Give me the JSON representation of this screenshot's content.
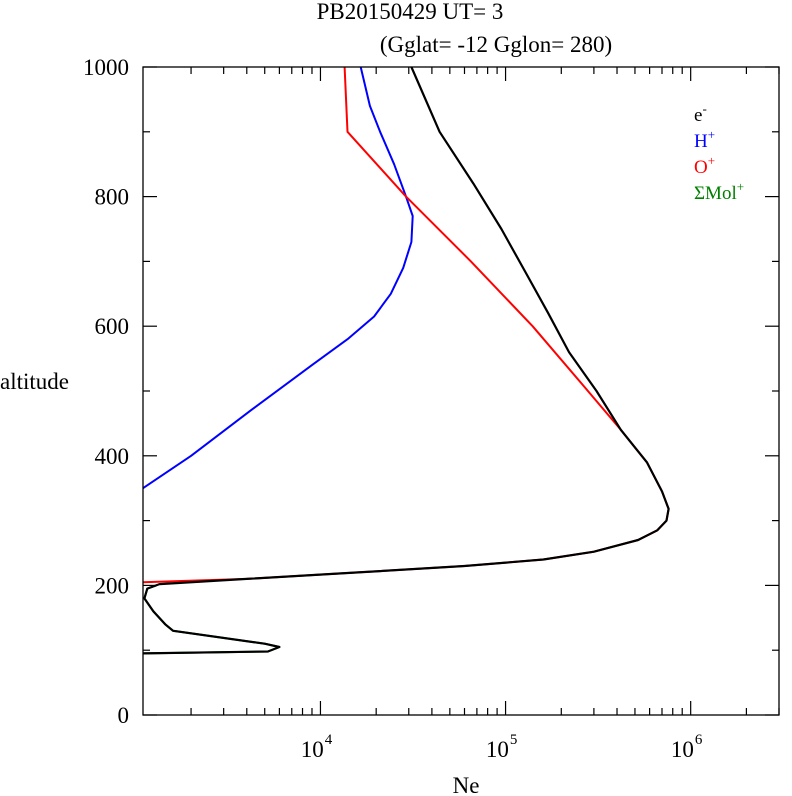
{
  "chart_data": {
    "type": "line",
    "title_line1": "PB20150429   UT=  3",
    "title_line2": "(Gglat= -12   Gglon=  280)",
    "xlabel": "Ne",
    "ylabel": "altitude",
    "xscale": "log",
    "xlim": [
      1100,
      3000000
    ],
    "ylim": [
      0,
      1000
    ],
    "x_tick_labels": [
      {
        "value": 10000,
        "base": "10",
        "exp": "4"
      },
      {
        "value": 100000,
        "base": "10",
        "exp": "5"
      },
      {
        "value": 1000000,
        "base": "10",
        "exp": "6"
      }
    ],
    "y_ticks": [
      0,
      200,
      400,
      600,
      800,
      1000
    ],
    "y_tick_labels": [
      "0",
      "200",
      "400",
      "600",
      "800",
      "1000"
    ],
    "legend": {
      "placement": "top-right",
      "items": [
        {
          "base": "e",
          "sup": "-",
          "color": "#000000"
        },
        {
          "base": "H",
          "sup": "+",
          "color": "#0000ff"
        },
        {
          "base": "O",
          "sup": "+",
          "color": "#ff0000"
        },
        {
          "base": "ΣMol",
          "sup": "+",
          "color": "#008000"
        }
      ]
    },
    "series": [
      {
        "color": "#008000",
        "points": [
          [
            1100,
            95
          ],
          [
            5200,
            98
          ],
          [
            6000,
            105
          ],
          [
            5000,
            110
          ],
          [
            1600,
            130
          ],
          [
            1450,
            140
          ],
          [
            1250,
            160
          ],
          [
            1120,
            180
          ],
          [
            1160,
            195
          ],
          [
            1300,
            200
          ]
        ]
      },
      {
        "color": "#0000ff",
        "points": [
          [
            1100,
            350
          ],
          [
            2000,
            400
          ],
          [
            4200,
            470
          ],
          [
            9000,
            540
          ],
          [
            14000,
            580
          ],
          [
            19500,
            615
          ],
          [
            24000,
            650
          ],
          [
            28000,
            690
          ],
          [
            31000,
            730
          ],
          [
            31500,
            770
          ],
          [
            29000,
            800
          ],
          [
            25000,
            850
          ],
          [
            21000,
            900
          ],
          [
            18500,
            940
          ],
          [
            16500,
            1000
          ]
        ]
      },
      {
        "color": "#ff0000",
        "points": [
          [
            1100,
            205
          ],
          [
            4000,
            210
          ],
          [
            16000,
            220
          ],
          [
            60000,
            230
          ],
          [
            160000,
            240
          ],
          [
            300000,
            252
          ],
          [
            520000,
            270
          ],
          [
            660000,
            285
          ],
          [
            740000,
            300
          ],
          [
            760000,
            318
          ],
          [
            700000,
            345
          ],
          [
            580000,
            390
          ],
          [
            420000,
            440
          ],
          [
            260000,
            510
          ],
          [
            140000,
            600
          ],
          [
            65000,
            700
          ],
          [
            29000,
            800
          ],
          [
            14000,
            900
          ],
          [
            13500,
            1000
          ]
        ]
      },
      {
        "color": "#000000",
        "points": [
          [
            1100,
            95
          ],
          [
            5200,
            98
          ],
          [
            6000,
            105
          ],
          [
            5000,
            110
          ],
          [
            1600,
            130
          ],
          [
            1450,
            140
          ],
          [
            1250,
            160
          ],
          [
            1120,
            180
          ],
          [
            1160,
            195
          ],
          [
            1350,
            202
          ],
          [
            4000,
            210
          ],
          [
            16000,
            220
          ],
          [
            60000,
            230
          ],
          [
            160000,
            240
          ],
          [
            300000,
            252
          ],
          [
            520000,
            270
          ],
          [
            660000,
            285
          ],
          [
            740000,
            300
          ],
          [
            760000,
            318
          ],
          [
            700000,
            345
          ],
          [
            580000,
            390
          ],
          [
            420000,
            440
          ],
          [
            310000,
            500
          ],
          [
            220000,
            560
          ],
          [
            170000,
            620
          ],
          [
            130000,
            680
          ],
          [
            95000,
            750
          ],
          [
            67000,
            820
          ],
          [
            44000,
            900
          ],
          [
            31000,
            1000
          ]
        ]
      }
    ]
  }
}
